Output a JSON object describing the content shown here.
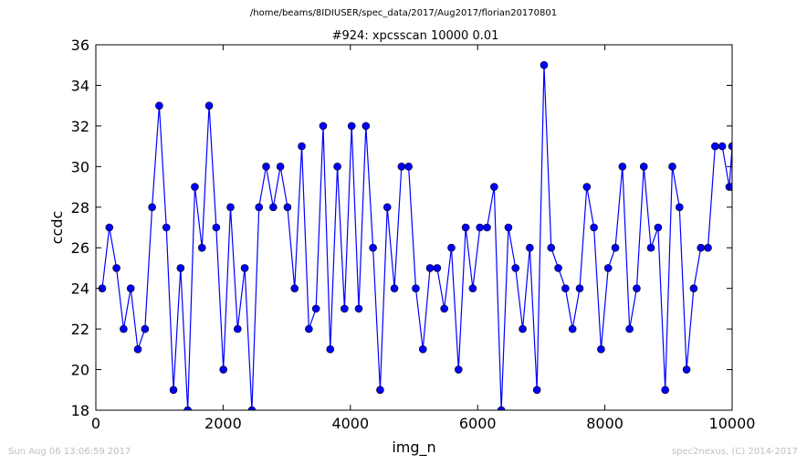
{
  "suptitle": "/home/beams/8IDIUSER/spec_data/2017/Aug2017/florian20170801",
  "footer": {
    "left": "Sun Aug 06 13:06:59 2017",
    "right": "spec2nexus, (C) 2014-2017"
  },
  "colors": {
    "line": "#0000ff",
    "marker": "#0000ff",
    "marker_edge": "#000000",
    "footer": "#bfbfbf"
  },
  "chart_data": {
    "type": "line",
    "title": "#924: xpcsscan 10000 0.01",
    "xlabel": "img_n",
    "ylabel": "ccdc",
    "xlim": [
      0,
      10000
    ],
    "ylim": [
      18,
      36
    ],
    "xticks": [
      "0",
      "2000",
      "4000",
      "6000",
      "8000",
      "10000"
    ],
    "yticks": [
      "18",
      "20",
      "22",
      "24",
      "26",
      "28",
      "30",
      "32",
      "34",
      "36"
    ],
    "grid": false,
    "legend": "none",
    "marker": "circle",
    "series": [
      {
        "x": [
          100,
          212,
          324,
          436,
          548,
          660,
          772,
          884,
          996,
          1108,
          1220,
          1332,
          1444,
          1556,
          1668,
          1780,
          1892,
          2004,
          2116,
          2228,
          2340,
          2452,
          2564,
          2676,
          2788,
          2900,
          3012,
          3124,
          3236,
          3348,
          3460,
          3572,
          3684,
          3796,
          3908,
          4020,
          4132,
          4244,
          4356,
          4468,
          4580,
          4692,
          4804,
          4916,
          5028,
          5140,
          5252,
          5364,
          5476,
          5588,
          5700,
          5812,
          5924,
          6036,
          6148,
          6260,
          6372,
          6484,
          6596,
          6708,
          6820,
          6932,
          7044,
          7156,
          7268,
          7380,
          7492,
          7604,
          7716,
          7828,
          7940,
          8052,
          8164,
          8276,
          8388,
          8500,
          8612,
          8724,
          8836,
          8948,
          9060,
          9172,
          9284,
          9396,
          9508,
          9620,
          9732,
          9844,
          9956,
          10000,
          10000
        ],
        "y": [
          24,
          27,
          25,
          22,
          24,
          21,
          22,
          28,
          33,
          27,
          19,
          25,
          18,
          29,
          26,
          33,
          27,
          20,
          28,
          22,
          25,
          18,
          28,
          30,
          28,
          30,
          28,
          24,
          31,
          22,
          23,
          32,
          21,
          30,
          23,
          32,
          23,
          32,
          26,
          19,
          28,
          24,
          30,
          30,
          24,
          21,
          25,
          25,
          23,
          26,
          20,
          27,
          24,
          27,
          27,
          29,
          18,
          27,
          25,
          22,
          26,
          19,
          35,
          26,
          25,
          24,
          22,
          24,
          29,
          27,
          21,
          25,
          26,
          30,
          22,
          24,
          30,
          26,
          27,
          19,
          30,
          28,
          20,
          24,
          26,
          26,
          31,
          31,
          29,
          31,
          29
        ]
      }
    ]
  }
}
